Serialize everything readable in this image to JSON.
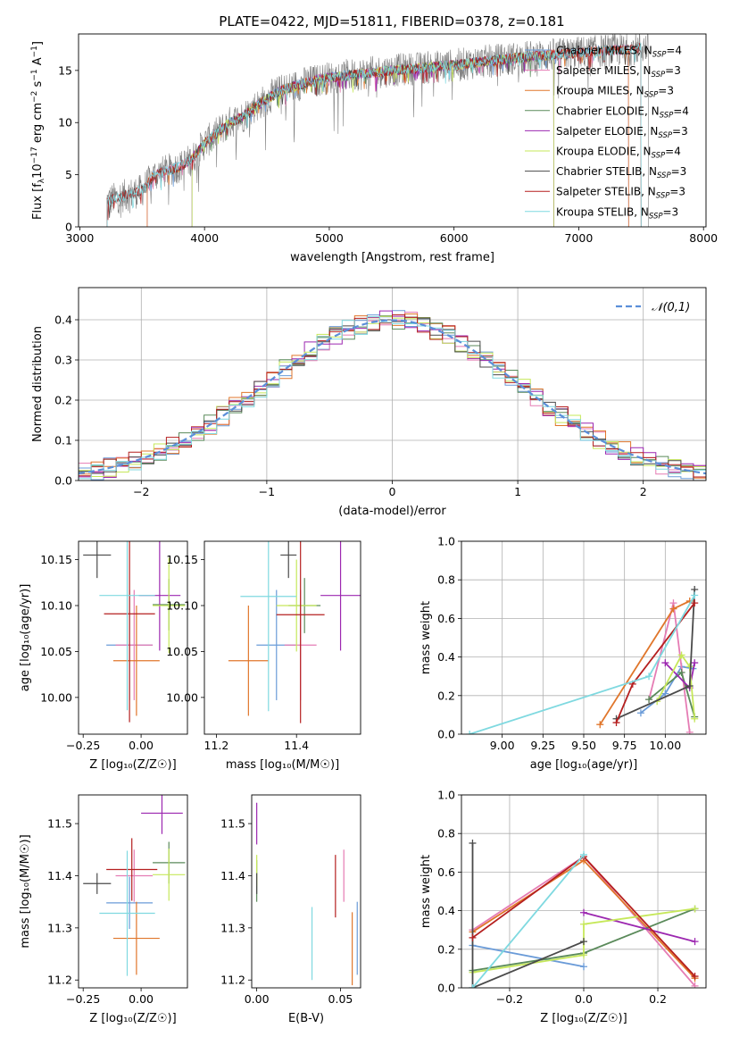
{
  "figure_title": "PLATE=0422, MJD=51811, FIBERID=0378, z=0.181",
  "colors": {
    "Chabrier MILES": "#6a9bd8",
    "Salpeter MILES": "#e57cb4",
    "Kroupa MILES": "#e0762b",
    "Chabrier ELODIE": "#5a8a5a",
    "Salpeter ELODIE": "#9c27b0",
    "Kroupa ELODIE": "#c6e85a",
    "Chabrier STELIB": "#4a4a4a",
    "Salpeter STELIB": "#b51f1f",
    "Kroupa STELIB": "#7fd9e0",
    "normal": "#5b8fd9",
    "grid": "#b0b0b0"
  },
  "chart_data": [
    {
      "id": "spectrum",
      "type": "line",
      "title": "PLATE=0422, MJD=51811, FIBERID=0378, z=0.181",
      "xlabel": "wavelength [Angstrom, rest frame]",
      "ylabel_parts": [
        "Flux [f",
        "λ",
        "10",
        "−17",
        " erg cm",
        "−2",
        " s",
        "−1",
        " A",
        "−1",
        "]"
      ],
      "xlim": [
        2990,
        8020
      ],
      "ylim": [
        0,
        18.5
      ],
      "xticks": [
        3000,
        4000,
        5000,
        6000,
        7000,
        8000
      ],
      "yticks": [
        0,
        5,
        10,
        15
      ],
      "grid": false,
      "legend_position": "upper-right",
      "continuum": {
        "x": [
          3220,
          3500,
          3600,
          3800,
          3900,
          4000,
          4100,
          4200,
          4300,
          4400,
          4600,
          4800,
          5000,
          5200,
          5500,
          5800,
          6000,
          6200,
          6500,
          6800,
          7000,
          7200,
          7400,
          7500
        ],
        "y": [
          2.5,
          3.5,
          5.0,
          5.8,
          6.5,
          8.0,
          9.0,
          10.0,
          10.5,
          11.5,
          13.0,
          13.8,
          14.3,
          14.6,
          15.0,
          15.3,
          15.5,
          15.8,
          16.2,
          16.5,
          16.7,
          16.9,
          17.0,
          17.2
        ]
      },
      "series": [
        {
          "name": "Chabrier MILES",
          "nssp": "4",
          "xmin": 3540,
          "xmax": 7400
        },
        {
          "name": "Salpeter MILES",
          "nssp": "3",
          "xmin": 3540,
          "xmax": 7400
        },
        {
          "name": "Kroupa MILES",
          "nssp": "3",
          "xmin": 3540,
          "xmax": 7400
        },
        {
          "name": "Chabrier ELODIE",
          "nssp": "4",
          "xmin": 3900,
          "xmax": 6800
        },
        {
          "name": "Salpeter ELODIE",
          "nssp": "3",
          "xmin": 3900,
          "xmax": 6800
        },
        {
          "name": "Kroupa ELODIE",
          "nssp": "4",
          "xmin": 3900,
          "xmax": 6800
        },
        {
          "name": "Chabrier STELIB",
          "nssp": "3",
          "xmin": 3220,
          "xmax": 7500
        },
        {
          "name": "Salpeter STELIB",
          "nssp": "3",
          "xmin": 3220,
          "xmax": 7500
        },
        {
          "name": "Kroupa STELIB",
          "nssp": "3",
          "xmin": 3220,
          "xmax": 7500
        }
      ],
      "data_series": {
        "name": "data",
        "color": "#808080",
        "xmin": 3220,
        "xmax": 7560
      }
    },
    {
      "id": "residuals",
      "type": "histogram",
      "xlabel": "(data-model)/error",
      "ylabel": "Normed distribution",
      "xlim": [
        -2.5,
        2.5
      ],
      "ylim": [
        0,
        0.48
      ],
      "xticks": [
        -2,
        -1,
        0,
        1,
        2
      ],
      "yticks": [
        0.0,
        0.1,
        0.2,
        0.3,
        0.4
      ],
      "grid": true,
      "bin_width": 0.1,
      "reference": {
        "label": "𝒩(0,1)",
        "mean": 0,
        "sigma": 1
      },
      "legend_position": "upper-right"
    },
    {
      "id": "age-vs-Z",
      "type": "errorbar",
      "xlabel": "Z [log₁₀(Z/Z☉)]",
      "ylabel": "age  [log₁₀(age/yr)]",
      "xlim": [
        -0.27,
        0.2
      ],
      "ylim": [
        9.96,
        10.17
      ],
      "xticks": [
        -0.25,
        0.0
      ],
      "yticks": [
        10.0,
        10.05,
        10.1,
        10.15
      ],
      "points": [
        {
          "name": "Chabrier MILES",
          "x": -0.05,
          "xerr": 0.1,
          "y": 10.057,
          "yerr": 0.06
        },
        {
          "name": "Salpeter MILES",
          "x": -0.03,
          "xerr": 0.08,
          "y": 10.057,
          "yerr": 0.06
        },
        {
          "name": "Kroupa MILES",
          "x": -0.02,
          "xerr": 0.1,
          "y": 10.04,
          "yerr": 0.06
        },
        {
          "name": "Chabrier ELODIE",
          "x": 0.12,
          "xerr": 0.07,
          "y": 10.101,
          "yerr": 0.028
        },
        {
          "name": "Salpeter ELODIE",
          "x": 0.08,
          "xerr": 0.09,
          "y": 10.111,
          "yerr": 0.06
        },
        {
          "name": "Kroupa ELODIE",
          "x": 0.12,
          "xerr": 0.07,
          "y": 10.1,
          "yerr": 0.052
        },
        {
          "name": "Chabrier STELIB",
          "x": -0.19,
          "xerr": 0.06,
          "y": 10.155,
          "yerr": 0.025
        },
        {
          "name": "Salpeter STELIB",
          "x": -0.05,
          "xerr": 0.11,
          "y": 10.091,
          "yerr": 0.118
        },
        {
          "name": "Kroupa STELIB",
          "x": -0.06,
          "xerr": 0.12,
          "y": 10.111,
          "yerr": 0.125
        }
      ]
    },
    {
      "id": "age-vs-mass",
      "type": "errorbar",
      "xlabel": "mass [log₁₀(M/M☉)]",
      "ylabel": "",
      "xlim": [
        11.17,
        11.56
      ],
      "ylim": [
        9.96,
        10.17
      ],
      "xticks": [
        11.2,
        11.4
      ],
      "yticks": [
        10.0,
        10.05,
        10.1,
        10.15
      ],
      "points": [
        {
          "name": "Chabrier MILES",
          "x": 11.35,
          "xerr": 0.05,
          "y": 10.057,
          "yerr": 0.06
        },
        {
          "name": "Salpeter MILES",
          "x": 11.41,
          "xerr": 0.04,
          "y": 10.057,
          "yerr": 0.06
        },
        {
          "name": "Kroupa MILES",
          "x": 11.28,
          "xerr": 0.05,
          "y": 10.04,
          "yerr": 0.06
        },
        {
          "name": "Chabrier ELODIE",
          "x": 11.42,
          "xerr": 0.04,
          "y": 10.1,
          "yerr": 0.03
        },
        {
          "name": "Salpeter ELODIE",
          "x": 11.51,
          "xerr": 0.05,
          "y": 10.111,
          "yerr": 0.06
        },
        {
          "name": "Kroupa ELODIE",
          "x": 11.4,
          "xerr": 0.05,
          "y": 10.1,
          "yerr": 0.05
        },
        {
          "name": "Chabrier STELIB",
          "x": 11.38,
          "xerr": 0.02,
          "y": 10.155,
          "yerr": 0.025
        },
        {
          "name": "Salpeter STELIB",
          "x": 11.41,
          "xerr": 0.06,
          "y": 10.09,
          "yerr": 0.118
        },
        {
          "name": "Kroupa STELIB",
          "x": 11.33,
          "xerr": 0.07,
          "y": 10.11,
          "yerr": 0.125
        }
      ]
    },
    {
      "id": "weight-vs-age",
      "type": "line",
      "xlabel": "age  [log₁₀(age/yr)]",
      "ylabel": "mass weight",
      "xlim": [
        8.75,
        10.25
      ],
      "ylim": [
        0,
        1
      ],
      "xticks": [
        9.0,
        9.25,
        9.5,
        9.75,
        10.0
      ],
      "yticks": [
        0.0,
        0.2,
        0.4,
        0.6,
        0.8,
        1.0
      ],
      "grid": true,
      "series": [
        {
          "name": "Chabrier MILES",
          "x": [
            9.85,
            10.0,
            10.1,
            10.17
          ],
          "y": [
            0.11,
            0.21,
            0.35,
            0.34
          ]
        },
        {
          "name": "Salpeter MILES",
          "x": [
            9.9,
            10.05,
            10.15
          ],
          "y": [
            0.18,
            0.68,
            0.01
          ]
        },
        {
          "name": "Kroupa MILES",
          "x": [
            9.6,
            10.05,
            10.15
          ],
          "y": [
            0.05,
            0.65,
            0.69
          ]
        },
        {
          "name": "Chabrier ELODIE",
          "x": [
            9.9,
            10.1,
            10.18
          ],
          "y": [
            0.18,
            0.32,
            0.09
          ]
        },
        {
          "name": "Salpeter ELODIE",
          "x": [
            10.0,
            10.15,
            10.18
          ],
          "y": [
            0.37,
            0.24,
            0.37
          ]
        },
        {
          "name": "Kroupa ELODIE",
          "x": [
            9.95,
            10.1,
            10.15,
            10.18
          ],
          "y": [
            0.17,
            0.41,
            0.35,
            0.08
          ]
        },
        {
          "name": "Chabrier STELIB",
          "x": [
            9.7,
            10.15,
            10.18
          ],
          "y": [
            0.08,
            0.25,
            0.75
          ]
        },
        {
          "name": "Salpeter STELIB",
          "x": [
            9.7,
            9.8,
            10.18
          ],
          "y": [
            0.06,
            0.26,
            0.68
          ]
        },
        {
          "name": "Kroupa STELIB",
          "x": [
            8.8,
            9.9,
            10.18
          ],
          "y": [
            0.0,
            0.3,
            0.72
          ]
        }
      ]
    },
    {
      "id": "mass-vs-Z",
      "type": "errorbar",
      "xlabel": "Z [log₁₀(Z/Z☉)]",
      "ylabel": "mass [log₁₀(M/M☉)]",
      "xlim": [
        -0.27,
        0.2
      ],
      "ylim": [
        11.185,
        11.555
      ],
      "xticks": [
        -0.25,
        0.0
      ],
      "yticks": [
        11.2,
        11.3,
        11.4,
        11.5
      ],
      "points": [
        {
          "name": "Chabrier MILES",
          "x": -0.05,
          "xerr": 0.1,
          "y": 11.348,
          "yerr": 0.05
        },
        {
          "name": "Salpeter MILES",
          "x": -0.03,
          "xerr": 0.08,
          "y": 11.4,
          "yerr": 0.05
        },
        {
          "name": "Kroupa MILES",
          "x": -0.02,
          "xerr": 0.1,
          "y": 11.28,
          "yerr": 0.07
        },
        {
          "name": "Chabrier ELODIE",
          "x": 0.12,
          "xerr": 0.07,
          "y": 11.425,
          "yerr": 0.04
        },
        {
          "name": "Salpeter ELODIE",
          "x": 0.09,
          "xerr": 0.09,
          "y": 11.52,
          "yerr": 0.04
        },
        {
          "name": "Kroupa ELODIE",
          "x": 0.12,
          "xerr": 0.07,
          "y": 11.402,
          "yerr": 0.05
        },
        {
          "name": "Chabrier STELIB",
          "x": -0.19,
          "xerr": 0.06,
          "y": 11.385,
          "yerr": 0.02
        },
        {
          "name": "Salpeter STELIB",
          "x": -0.04,
          "xerr": 0.11,
          "y": 11.412,
          "yerr": 0.06
        },
        {
          "name": "Kroupa STELIB",
          "x": -0.06,
          "xerr": 0.12,
          "y": 11.328,
          "yerr": 0.12
        }
      ]
    },
    {
      "id": "mass-vs-EBV",
      "type": "errorbar",
      "xlabel": "E(B-V)",
      "ylabel": "",
      "xlim": [
        -0.003,
        0.062
      ],
      "ylim": [
        11.185,
        11.555
      ],
      "xticks": [
        0.0,
        0.05
      ],
      "yticks": [
        11.2,
        11.3,
        11.4,
        11.5
      ],
      "points": [
        {
          "name": "Chabrier MILES",
          "x": 0.06,
          "xerr": 0.0,
          "y": 11.28,
          "yerr": 0.07
        },
        {
          "name": "Salpeter MILES",
          "x": 0.052,
          "xerr": 0.0,
          "y": 11.4,
          "yerr": 0.05
        },
        {
          "name": "Kroupa MILES",
          "x": 0.057,
          "xerr": 0.0,
          "y": 11.26,
          "yerr": 0.07
        },
        {
          "name": "Chabrier ELODIE",
          "x": 0.0,
          "xerr": 0.0,
          "y": 11.39,
          "yerr": 0.04
        },
        {
          "name": "Salpeter ELODIE",
          "x": 0.0,
          "xerr": 0.0,
          "y": 11.5,
          "yerr": 0.04
        },
        {
          "name": "Kroupa ELODIE",
          "x": 0.0,
          "xerr": 0.0,
          "y": 11.41,
          "yerr": 0.03
        },
        {
          "name": "Chabrier STELIB",
          "x": 0.0,
          "xerr": 0.0,
          "y": 11.385,
          "yerr": 0.02
        },
        {
          "name": "Salpeter STELIB",
          "x": 0.047,
          "xerr": 0.0,
          "y": 11.38,
          "yerr": 0.06
        },
        {
          "name": "Kroupa STELIB",
          "x": 0.033,
          "xerr": 0.0,
          "y": 11.27,
          "yerr": 0.07
        }
      ]
    },
    {
      "id": "weight-vs-Z",
      "type": "line",
      "xlabel": "Z [log₁₀(Z/Z☉)]",
      "ylabel": "mass weight",
      "xlim": [
        -0.33,
        0.33
      ],
      "ylim": [
        0,
        1
      ],
      "xticks": [
        -0.2,
        0.0,
        0.2
      ],
      "yticks": [
        0.0,
        0.2,
        0.4,
        0.6,
        0.8,
        1.0
      ],
      "grid": true,
      "series": [
        {
          "name": "Chabrier MILES",
          "x": [
            -0.3,
            0.0
          ],
          "y": [
            0.22,
            0.11
          ]
        },
        {
          "name": "Salpeter MILES",
          "x": [
            -0.3,
            0.0,
            0.3
          ],
          "y": [
            0.3,
            0.68,
            0.01
          ]
        },
        {
          "name": "Kroupa MILES",
          "x": [
            -0.3,
            0.0,
            0.3
          ],
          "y": [
            0.29,
            0.66,
            0.05
          ]
        },
        {
          "name": "Chabrier ELODIE",
          "x": [
            -0.3,
            0.0,
            0.3
          ],
          "y": [
            0.09,
            0.18,
            0.41
          ]
        },
        {
          "name": "Salpeter ELODIE",
          "x": [
            0.0,
            0.3
          ],
          "y": [
            0.39,
            0.24
          ]
        },
        {
          "name": "Kroupa ELODIE",
          "x": [
            -0.3,
            0.0,
            0.0,
            0.3
          ],
          "y": [
            0.08,
            0.17,
            0.33,
            0.41
          ]
        },
        {
          "name": "Chabrier STELIB",
          "x": [
            -0.3,
            -0.3,
            0.0
          ],
          "y": [
            0.75,
            0.0,
            0.24
          ]
        },
        {
          "name": "Salpeter STELIB",
          "x": [
            -0.3,
            0.0,
            0.3
          ],
          "y": [
            0.26,
            0.68,
            0.06
          ]
        },
        {
          "name": "Kroupa STELIB",
          "x": [
            -0.3,
            0.0
          ],
          "y": [
            0.0,
            0.69
          ]
        }
      ]
    }
  ]
}
